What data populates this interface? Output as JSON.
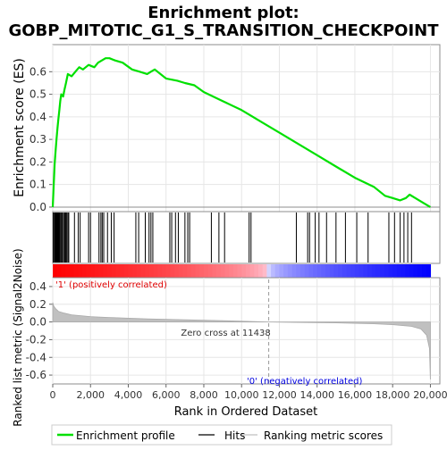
{
  "chart_data": {
    "type": "line",
    "title_line1": "Enrichment plot:",
    "title_line2": "GOBP_MITOTIC_G1_S_TRANSITION_CHECKPOINT",
    "es_panel": {
      "ylabel": "Enrichment score (ES)",
      "ylim": [
        -0.02,
        0.72
      ],
      "yticks": [
        0.0,
        0.1,
        0.2,
        0.3,
        0.4,
        0.5,
        0.6
      ],
      "ytick_labels": [
        "0.0",
        "0.1",
        "0.2",
        "0.3",
        "0.4",
        "0.5",
        "0.6"
      ],
      "line_color": "#00e000",
      "points": [
        [
          0,
          0.0
        ],
        [
          50,
          0.1
        ],
        [
          100,
          0.19
        ],
        [
          150,
          0.25
        ],
        [
          200,
          0.3
        ],
        [
          250,
          0.35
        ],
        [
          300,
          0.39
        ],
        [
          350,
          0.43
        ],
        [
          400,
          0.47
        ],
        [
          450,
          0.5
        ],
        [
          550,
          0.49
        ],
        [
          620,
          0.52
        ],
        [
          700,
          0.55
        ],
        [
          800,
          0.59
        ],
        [
          1000,
          0.58
        ],
        [
          1200,
          0.6
        ],
        [
          1400,
          0.62
        ],
        [
          1600,
          0.61
        ],
        [
          1900,
          0.63
        ],
        [
          2200,
          0.62
        ],
        [
          2400,
          0.64
        ],
        [
          2600,
          0.65
        ],
        [
          2800,
          0.66
        ],
        [
          3000,
          0.66
        ],
        [
          3300,
          0.65
        ],
        [
          3700,
          0.64
        ],
        [
          4200,
          0.61
        ],
        [
          4600,
          0.6
        ],
        [
          5000,
          0.59
        ],
        [
          5200,
          0.6
        ],
        [
          5400,
          0.61
        ],
        [
          6000,
          0.57
        ],
        [
          6600,
          0.56
        ],
        [
          7000,
          0.55
        ],
        [
          7500,
          0.54
        ],
        [
          8000,
          0.51
        ],
        [
          9000,
          0.47
        ],
        [
          10000,
          0.43
        ],
        [
          11000,
          0.38
        ],
        [
          12000,
          0.33
        ],
        [
          13000,
          0.28
        ],
        [
          14000,
          0.23
        ],
        [
          15000,
          0.18
        ],
        [
          16000,
          0.13
        ],
        [
          17000,
          0.09
        ],
        [
          17600,
          0.05
        ],
        [
          18000,
          0.04
        ],
        [
          18400,
          0.03
        ],
        [
          18700,
          0.04
        ],
        [
          18900,
          0.055
        ],
        [
          19200,
          0.04
        ],
        [
          19600,
          0.02
        ],
        [
          20000,
          0.0
        ]
      ]
    },
    "hits_panel": {
      "hit_positions": [
        30,
        80,
        120,
        160,
        190,
        230,
        260,
        300,
        330,
        370,
        420,
        470,
        520,
        580,
        640,
        690,
        740,
        800,
        850,
        1150,
        1350,
        1450,
        1900,
        2000,
        2450,
        2550,
        2620,
        2700,
        2900,
        3100,
        3250,
        4400,
        4550,
        4900,
        5100,
        5200,
        5300,
        6200,
        6300,
        6500,
        6650,
        7000,
        7150,
        7250,
        8400,
        8800,
        9100,
        10400,
        10500,
        12900,
        13500,
        13600,
        13900,
        14100,
        14500,
        15000,
        15500,
        16100,
        16700,
        17800,
        18100,
        18400,
        18600,
        18800,
        19000
      ]
    },
    "rank_bar": {
      "label_positive": "'1' (positively correlated)",
      "label_negative": "'0' (negatively correlated)",
      "zero_cross_label": "Zero cross at 11438",
      "zero_cross": 11438
    },
    "metric_panel": {
      "ylabel": "Ranked list metric (Signal2Noise)",
      "ylim": [
        -0.7,
        0.5
      ],
      "yticks": [
        -0.6,
        -0.4,
        -0.2,
        0.0,
        0.2,
        0.4
      ],
      "ytick_labels": [
        "-0.6",
        "-0.4",
        "-0.2",
        "0.0",
        "0.2",
        "0.4"
      ],
      "curve": [
        [
          0,
          0.22
        ],
        [
          50,
          0.18
        ],
        [
          150,
          0.15
        ],
        [
          300,
          0.12
        ],
        [
          600,
          0.1
        ],
        [
          1000,
          0.08
        ],
        [
          2000,
          0.06
        ],
        [
          3000,
          0.05
        ],
        [
          5000,
          0.035
        ],
        [
          7000,
          0.025
        ],
        [
          9000,
          0.015
        ],
        [
          11438,
          0.0
        ],
        [
          13000,
          -0.005
        ],
        [
          15000,
          -0.01
        ],
        [
          17000,
          -0.02
        ],
        [
          18000,
          -0.03
        ],
        [
          19000,
          -0.05
        ],
        [
          19500,
          -0.08
        ],
        [
          19800,
          -0.15
        ],
        [
          19950,
          -0.3
        ],
        [
          20000,
          -0.65
        ]
      ]
    },
    "xaxis": {
      "label": "Rank in Ordered Dataset",
      "xlim": [
        0,
        20500
      ],
      "ticks": [
        0,
        2000,
        4000,
        6000,
        8000,
        10000,
        12000,
        14000,
        16000,
        18000,
        20000
      ],
      "tick_labels": [
        "0",
        "2,000",
        "4,000",
        "6,000",
        "8,000",
        "10,000",
        "12,000",
        "14,000",
        "16,000",
        "18,000",
        "20,000"
      ]
    },
    "legend": {
      "items": [
        {
          "label": "Enrichment profile",
          "color": "#00e000"
        },
        {
          "label": "Hits",
          "color": "#000000"
        },
        {
          "label": "Ranking metric scores",
          "color": "#c0c0c0"
        }
      ]
    }
  }
}
